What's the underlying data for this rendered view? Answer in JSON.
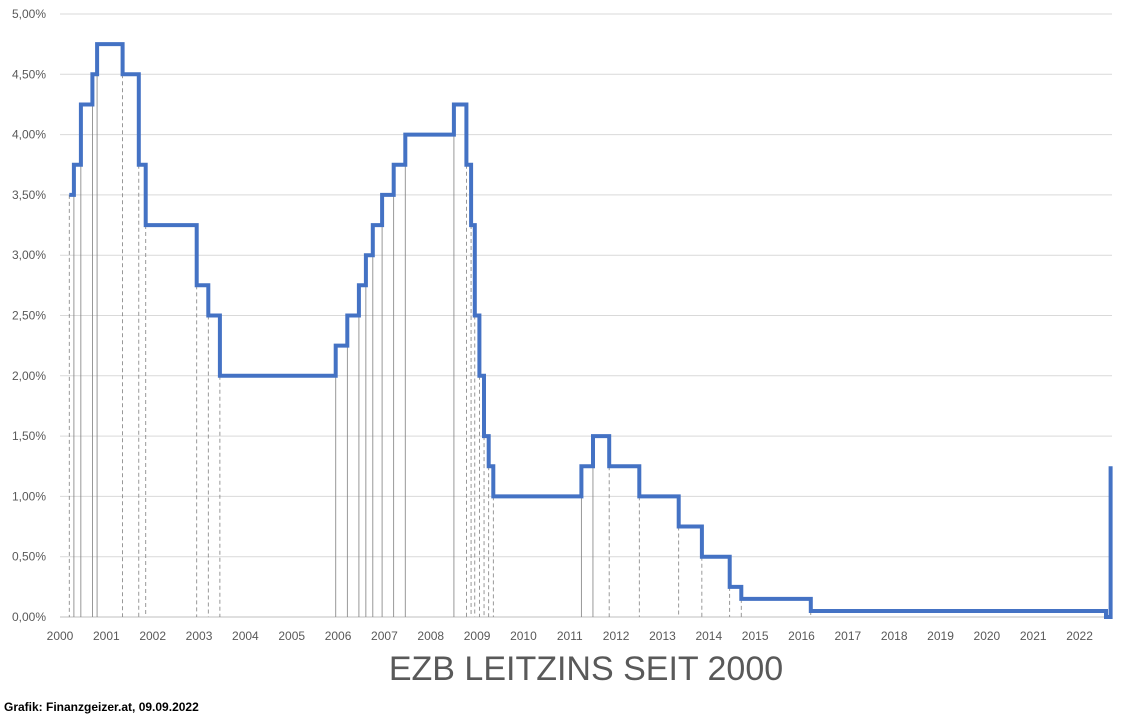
{
  "chart_data": {
    "type": "line",
    "title": "EZB LEITZINS SEIT 2000",
    "xlabel": "",
    "ylabel": "",
    "xlim": [
      2000,
      2022.7
    ],
    "ylim": [
      0,
      5
    ],
    "grid": true,
    "y_ticks": [
      0,
      0.5,
      1,
      1.5,
      2,
      2.5,
      3,
      3.5,
      4,
      4.5,
      5
    ],
    "y_tick_labels": [
      "0,00%",
      "0,50%",
      "1,00%",
      "1,50%",
      "2,00%",
      "2,50%",
      "3,00%",
      "3,50%",
      "4,00%",
      "4,50%",
      "5,00%"
    ],
    "x_ticks": [
      2000,
      2001,
      2002,
      2003,
      2004,
      2005,
      2006,
      2007,
      2008,
      2009,
      2010,
      2011,
      2012,
      2013,
      2014,
      2015,
      2016,
      2017,
      2018,
      2019,
      2020,
      2021,
      2022
    ],
    "x_tick_labels": [
      "2000",
      "2001",
      "2002",
      "2003",
      "2004",
      "2005",
      "2006",
      "2007",
      "2008",
      "2009",
      "2010",
      "2011",
      "2012",
      "2013",
      "2014",
      "2015",
      "2016",
      "2017",
      "2018",
      "2019",
      "2020",
      "2021",
      "2022"
    ],
    "line_color": "#4472c4",
    "series": [
      {
        "name": "",
        "step": true,
        "x": [
          2000.2,
          2000.3,
          2000.45,
          2000.7,
          2000.8,
          2001.35,
          2001.7,
          2001.85,
          2002.95,
          2003.2,
          2003.45,
          2005.95,
          2006.2,
          2006.45,
          2006.6,
          2006.75,
          2006.95,
          2007.2,
          2007.45,
          2008.5,
          2008.77,
          2008.87,
          2008.95,
          2009.05,
          2009.15,
          2009.25,
          2009.35,
          2011.25,
          2011.5,
          2011.85,
          2012.5,
          2013.35,
          2013.85,
          2014.45,
          2014.7,
          2016.2,
          2022.57,
          2022.67
        ],
        "y": [
          3.5,
          3.75,
          4.25,
          4.5,
          4.75,
          4.5,
          3.75,
          3.25,
          2.75,
          2.5,
          2.0,
          2.25,
          2.5,
          2.75,
          3.0,
          3.25,
          3.5,
          3.75,
          4.0,
          4.25,
          3.75,
          3.25,
          2.5,
          2.0,
          1.5,
          1.25,
          1.0,
          1.25,
          1.5,
          1.25,
          1.0,
          0.75,
          0.5,
          0.25,
          0.15,
          0.05,
          0.0,
          0.5
        ],
        "end_x": 2022.67,
        "end_y": 1.25
      }
    ]
  },
  "credit": "Grafik: Finanzgeizer.at, 09.09.2022"
}
